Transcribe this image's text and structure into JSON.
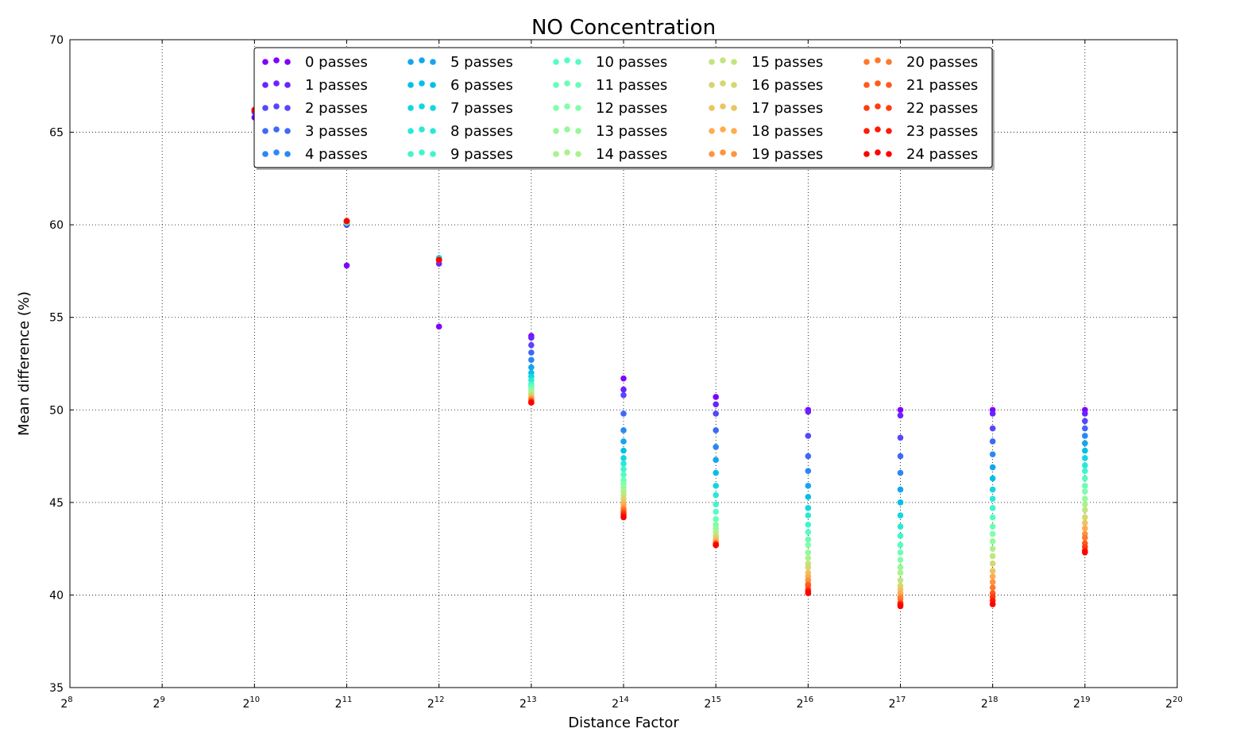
{
  "chart_data": {
    "type": "scatter",
    "title": "NO Concentration",
    "xlabel": "Distance Factor",
    "ylabel": "Mean difference (%)",
    "x_scale": "log2",
    "xlim_exponent": [
      8,
      20
    ],
    "ylim": [
      35,
      70
    ],
    "x_tick_base": "2",
    "x_tick_exponents": [
      "8",
      "9",
      "10",
      "11",
      "12",
      "13",
      "14",
      "15",
      "16",
      "17",
      "18",
      "19",
      "20"
    ],
    "y_ticks": [
      "35",
      "40",
      "45",
      "50",
      "55",
      "60",
      "65",
      "70"
    ],
    "grid": true,
    "legend_placement": "upper center, 5 columns",
    "colormap": "rainbow",
    "series_colors": [
      "#8000ff",
      "#6a23fe",
      "#5646fc",
      "#3f68f8",
      "#2b87f4",
      "#15a5ee",
      "#00c0e7",
      "#13d6e0",
      "#2be8d6",
      "#40f5cc",
      "#55fdc1",
      "#6afeb5",
      "#80ffa8",
      "#95f99b",
      "#aaf28d",
      "#c0e67e",
      "#d5d76f",
      "#eac45f",
      "#ffac4f",
      "#ff933f",
      "#ff782e",
      "#ff5a1e",
      "#ff3c0f",
      "#ff1a05",
      "#ff0000"
    ],
    "series_names": [
      "0 passes",
      "1 passes",
      "2 passes",
      "3 passes",
      "4 passes",
      "5 passes",
      "6 passes",
      "7 passes",
      "8 passes",
      "9 passes",
      "10 passes",
      "11 passes",
      "12 passes",
      "13 passes",
      "14 passes",
      "15 passes",
      "16 passes",
      "17 passes",
      "18 passes",
      "19 passes",
      "20 passes",
      "21 passes",
      "22 passes",
      "23 passes",
      "24 passes"
    ],
    "x_exponents": [
      10,
      11,
      12,
      13,
      14,
      15,
      16,
      17,
      18,
      19
    ],
    "points_by_x": [
      [
        65.8,
        66.1,
        66.2,
        66.2,
        66.2,
        66.2,
        66.2,
        66.2,
        66.2,
        66.2,
        66.2,
        66.2,
        66.2,
        66.2,
        66.2,
        66.2,
        66.2,
        66.2,
        66.2,
        66.2,
        66.2,
        66.2,
        66.2,
        66.2,
        66.2
      ],
      [
        57.8,
        60.0,
        60.1,
        60.1,
        60.1,
        60.1,
        60.1,
        60.1,
        60.1,
        60.1,
        60.2,
        60.2,
        60.2,
        60.2,
        60.2,
        60.2,
        60.2,
        60.2,
        60.2,
        60.2,
        60.2,
        60.2,
        60.2,
        60.2,
        60.2
      ],
      [
        54.5,
        57.9,
        58.2,
        58.2,
        58.2,
        58.2,
        58.2,
        58.2,
        58.1,
        58.1,
        58.1,
        58.1,
        58.1,
        58.1,
        58.1,
        58.1,
        58.1,
        58.1,
        58.1,
        58.1,
        58.1,
        58.1,
        58.1,
        58.1,
        58.1
      ],
      [
        54.0,
        53.9,
        53.5,
        53.1,
        52.7,
        52.3,
        52.0,
        51.8,
        51.6,
        51.4,
        51.3,
        51.2,
        51.1,
        51.0,
        50.9,
        50.8,
        50.8,
        50.7,
        50.6,
        50.6,
        50.5,
        50.5,
        50.4,
        50.4,
        50.4
      ],
      [
        51.7,
        51.1,
        50.8,
        49.8,
        48.9,
        48.3,
        47.8,
        47.4,
        47.1,
        46.8,
        46.5,
        46.2,
        46.0,
        45.8,
        45.6,
        45.4,
        45.2,
        45.0,
        44.9,
        44.7,
        44.6,
        44.5,
        44.4,
        44.3,
        44.2
      ],
      [
        50.7,
        50.3,
        49.8,
        48.9,
        48.0,
        47.3,
        46.6,
        45.9,
        45.4,
        44.9,
        44.5,
        44.1,
        43.8,
        43.6,
        43.4,
        43.2,
        43.1,
        43.0,
        42.9,
        42.8,
        42.8,
        42.8,
        42.7,
        42.7,
        42.7
      ],
      [
        50.0,
        49.9,
        48.6,
        47.5,
        46.7,
        45.9,
        45.3,
        44.7,
        44.3,
        43.8,
        43.4,
        43.0,
        42.7,
        42.3,
        42.0,
        41.7,
        41.5,
        41.2,
        41.0,
        40.8,
        40.6,
        40.5,
        40.3,
        40.2,
        40.1
      ],
      [
        50.0,
        49.7,
        48.5,
        47.5,
        46.6,
        45.7,
        45.0,
        44.3,
        43.7,
        43.2,
        42.7,
        42.3,
        41.9,
        41.5,
        41.2,
        40.8,
        40.5,
        40.3,
        40.1,
        39.9,
        39.8,
        39.6,
        39.5,
        39.5,
        39.4
      ],
      [
        50.0,
        49.8,
        49.0,
        48.3,
        47.6,
        46.9,
        46.3,
        45.7,
        45.2,
        44.7,
        44.2,
        43.7,
        43.3,
        42.9,
        42.5,
        42.1,
        41.7,
        41.3,
        41.0,
        40.7,
        40.4,
        40.1,
        39.9,
        39.7,
        39.5
      ],
      [
        50.0,
        49.8,
        49.4,
        49.0,
        48.6,
        48.2,
        47.8,
        47.4,
        47.0,
        46.7,
        46.3,
        45.9,
        45.6,
        45.2,
        44.9,
        44.6,
        44.2,
        43.9,
        43.6,
        43.3,
        43.1,
        42.8,
        42.6,
        42.4,
        42.3
      ]
    ]
  }
}
